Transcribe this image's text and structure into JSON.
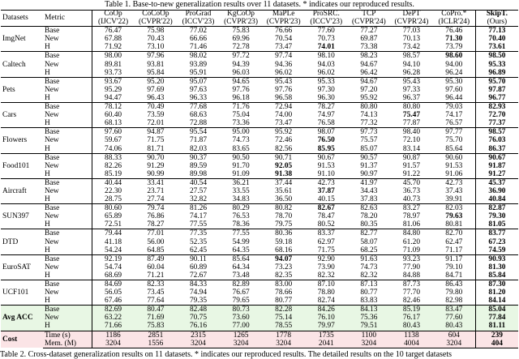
{
  "table": {
    "caption": "Table 1. Base-to-new generalization results over 11 datasets. * indicates our reproduced results.",
    "header": {
      "datasets": "Datasets",
      "metric": "Metric",
      "methods": [
        {
          "name": "CoOp",
          "venue": "(IJCV'22)"
        },
        {
          "name": "CoCoOp",
          "venue": "(CVPR'22)"
        },
        {
          "name": "ProGrad",
          "venue": "(ICCV'23)"
        },
        {
          "name": "KgCoOp",
          "venue": "(CVPR'23)"
        },
        {
          "name": "MaPLe",
          "venue": "(CVPR'23)"
        },
        {
          "name": "ProSRC.",
          "venue": "(ICCV'23)"
        },
        {
          "name": "TCP",
          "venue": "(CVPR'24)"
        },
        {
          "name": "DePT",
          "venue": "(CVPR'24)"
        },
        {
          "name": "CoPro.*",
          "venue": "(ICLR'24)"
        },
        {
          "name": "SkipT.",
          "venue": "(Ours)"
        }
      ]
    },
    "groups": [
      {
        "dataset": "ImgNet",
        "rows": [
          {
            "metric": "Base",
            "values": [
              "76.47",
              "75.98",
              "77.02",
              "75.83",
              "76.66",
              "77.60",
              "77.27",
              "77.03",
              "76.46",
              "77.13"
            ]
          },
          {
            "metric": "New",
            "values": [
              "67.88",
              "70.43",
              "66.66",
              "69.96",
              "70.54",
              "70.73",
              "69.87",
              "70.13",
              "71.30",
              "70.40"
            ]
          },
          {
            "metric": "H",
            "values": [
              "71.92",
              "73.10",
              "71.46",
              "72.78",
              "73.47",
              "74.01",
              "73.38",
              "73.42",
              "73.79",
              "73.61"
            ]
          }
        ]
      },
      {
        "dataset": "Caltech",
        "rows": [
          {
            "metric": "Base",
            "values": [
              "98.00",
              "97.96",
              "98.02",
              "97.72",
              "97.74",
              "98.10",
              "98.23",
              "98.57",
              "98.60",
              "98.50"
            ]
          },
          {
            "metric": "New",
            "values": [
              "89.81",
              "93.81",
              "93.89",
              "94.39",
              "94.36",
              "94.03",
              "94.67",
              "94.10",
              "94.00",
              "95.33"
            ]
          },
          {
            "metric": "H",
            "values": [
              "93.73",
              "95.84",
              "95.91",
              "96.03",
              "96.02",
              "96.02",
              "96.42",
              "96.28",
              "96.24",
              "96.89"
            ]
          }
        ]
      },
      {
        "dataset": "Pets",
        "rows": [
          {
            "metric": "Base",
            "values": [
              "93.67",
              "95.20",
              "95.07",
              "94.65",
              "95.43",
              "95.33",
              "94.67",
              "95.43",
              "95.30",
              "95.70"
            ]
          },
          {
            "metric": "New",
            "values": [
              "95.29",
              "97.69",
              "97.63",
              "97.76",
              "97.76",
              "97.30",
              "97.20",
              "97.33",
              "97.60",
              "97.87"
            ]
          },
          {
            "metric": "H",
            "values": [
              "94.47",
              "96.43",
              "96.33",
              "96.18",
              "96.58",
              "96.30",
              "95.92",
              "96.37",
              "96.44",
              "96.77"
            ]
          }
        ]
      },
      {
        "dataset": "Cars",
        "rows": [
          {
            "metric": "Base",
            "values": [
              "78.12",
              "70.49",
              "77.68",
              "71.76",
              "72.94",
              "78.27",
              "80.80",
              "80.80",
              "79.03",
              "82.93"
            ]
          },
          {
            "metric": "New",
            "values": [
              "60.40",
              "73.59",
              "68.63",
              "75.04",
              "74.00",
              "74.97",
              "74.13",
              "75.47",
              "74.17",
              "72.70"
            ]
          },
          {
            "metric": "H",
            "values": [
              "68.13",
              "72.01",
              "72.88",
              "73.36",
              "73.47",
              "76.58",
              "77.32",
              "77.87",
              "76.57",
              "77.37"
            ]
          }
        ]
      },
      {
        "dataset": "Flowers",
        "rows": [
          {
            "metric": "Base",
            "values": [
              "97.60",
              "94.87",
              "95.54",
              "95.00",
              "95.92",
              "98.07",
              "97.73",
              "98.40",
              "97.77",
              "98.57"
            ]
          },
          {
            "metric": "New",
            "values": [
              "59.67",
              "71.75",
              "71.87",
              "74.73",
              "72.46",
              "76.50",
              "75.57",
              "72.10",
              "75.70",
              "76.03"
            ]
          },
          {
            "metric": "H",
            "values": [
              "74.06",
              "81.71",
              "82.03",
              "83.65",
              "82.56",
              "85.95",
              "85.07",
              "83.14",
              "85.64",
              "86.37"
            ]
          }
        ]
      },
      {
        "dataset": "Food101",
        "rows": [
          {
            "metric": "Base",
            "values": [
              "88.33",
              "90.70",
              "90.37",
              "90.50",
              "90.71",
              "90.67",
              "90.57",
              "90.87",
              "90.60",
              "90.67"
            ]
          },
          {
            "metric": "New",
            "values": [
              "82.26",
              "91.29",
              "89.59",
              "91.70",
              "92.05",
              "91.53",
              "91.37",
              "91.57",
              "91.53",
              "91.87"
            ]
          },
          {
            "metric": "H",
            "values": [
              "85.19",
              "90.99",
              "89.98",
              "91.09",
              "91.38",
              "91.10",
              "90.97",
              "91.22",
              "91.06",
              "91.27"
            ]
          }
        ]
      },
      {
        "dataset": "Aircraft",
        "rows": [
          {
            "metric": "Base",
            "values": [
              "40.44",
              "33.41",
              "40.54",
              "36.21",
              "37.44",
              "42.73",
              "41.97",
              "45.70",
              "42.73",
              "45.37"
            ]
          },
          {
            "metric": "New",
            "values": [
              "22.30",
              "23.71",
              "27.57",
              "33.55",
              "35.61",
              "37.87",
              "34.43",
              "36.73",
              "37.43",
              "36.90"
            ]
          },
          {
            "metric": "H",
            "values": [
              "28.75",
              "27.74",
              "32.82",
              "34.83",
              "36.50",
              "40.15",
              "37.83",
              "40.73",
              "39.91",
              "40.84"
            ]
          }
        ]
      },
      {
        "dataset": "SUN397",
        "rows": [
          {
            "metric": "Base",
            "values": [
              "80.60",
              "79.74",
              "81.26",
              "80.29",
              "80.82",
              "82.67",
              "82.63",
              "83.27",
              "82.03",
              "82.87"
            ]
          },
          {
            "metric": "New",
            "values": [
              "65.89",
              "76.86",
              "74.17",
              "76.53",
              "78.70",
              "78.47",
              "78.20",
              "78.97",
              "79.63",
              "79.30"
            ]
          },
          {
            "metric": "H",
            "values": [
              "72.51",
              "78.27",
              "77.55",
              "78.36",
              "79.75",
              "80.52",
              "80.35",
              "81.06",
              "80.81",
              "81.05"
            ]
          }
        ]
      },
      {
        "dataset": "DTD",
        "rows": [
          {
            "metric": "Base",
            "values": [
              "79.44",
              "77.01",
              "77.35",
              "77.55",
              "80.36",
              "83.37",
              "82.77",
              "84.80",
              "82.70",
              "83.77"
            ]
          },
          {
            "metric": "New",
            "values": [
              "41.18",
              "56.00",
              "52.35",
              "54.99",
              "59.18",
              "62.97",
              "58.07",
              "61.20",
              "62.47",
              "67.23"
            ]
          },
          {
            "metric": "H",
            "values": [
              "54.24",
              "64.85",
              "62.45",
              "64.35",
              "68.16",
              "71.75",
              "68.25",
              "71.09",
              "71.17",
              "74.59"
            ]
          }
        ]
      },
      {
        "dataset": "EuroSAT",
        "rows": [
          {
            "metric": "Base",
            "values": [
              "92.19",
              "87.49",
              "90.11",
              "85.64",
              "94.07",
              "92.90",
              "91.63",
              "93.23",
              "91.17",
              "90.93"
            ]
          },
          {
            "metric": "New",
            "values": [
              "54.74",
              "60.04",
              "60.89",
              "64.34",
              "73.23",
              "73.90",
              "74.73",
              "77.90",
              "79.10",
              "81.30"
            ]
          },
          {
            "metric": "H",
            "values": [
              "68.69",
              "71.21",
              "72.67",
              "73.48",
              "82.35",
              "82.32",
              "82.32",
              "84.88",
              "84.71",
              "85.84"
            ]
          }
        ]
      },
      {
        "dataset": "UCF101",
        "rows": [
          {
            "metric": "Base",
            "values": [
              "84.69",
              "82.33",
              "84.33",
              "82.89",
              "83.00",
              "87.10",
              "87.13",
              "87.73",
              "86.43",
              "87.30"
            ]
          },
          {
            "metric": "New",
            "values": [
              "56.05",
              "73.45",
              "74.94",
              "76.67",
              "78.66",
              "78.80",
              "80.77",
              "77.70",
              "79.80",
              "81.20"
            ]
          },
          {
            "metric": "H",
            "values": [
              "67.46",
              "77.64",
              "79.35",
              "79.65",
              "80.77",
              "82.74",
              "83.83",
              "82.46",
              "82.98",
              "84.14"
            ]
          }
        ]
      },
      {
        "dataset": "Avg ACC",
        "rows": [
          {
            "metric": "Base",
            "values": [
              "82.69",
              "80.47",
              "82.48",
              "80.73",
              "82.28",
              "84.26",
              "84.13",
              "85.19",
              "83.47",
              "85.04"
            ]
          },
          {
            "metric": "New",
            "values": [
              "63.22",
              "71.69",
              "70.75",
              "73.60",
              "75.14",
              "76.10",
              "75.36",
              "76.17",
              "77.60",
              "77.84"
            ]
          },
          {
            "metric": "H",
            "values": [
              "71.66",
              "75.83",
              "76.16",
              "77.00",
              "78.55",
              "79.97",
              "79.51",
              "80.43",
              "80.43",
              "81.11"
            ]
          }
        ]
      },
      {
        "dataset": "Cost",
        "rows": [
          {
            "metric": "Time (s)",
            "values": [
              "1186",
              "2851",
              "2315",
              "1265",
              "1778",
              "1735",
              "1100",
              "1138",
              "604",
              "239"
            ]
          },
          {
            "metric": "Mem. (M)",
            "values": [
              "3204",
              "1556",
              "3204",
              "3204",
              "3204",
              "2041",
              "3204",
              "4004",
              "3204",
              "404"
            ]
          }
        ]
      }
    ]
  },
  "next_caption": "Table 2. Cross-dataset generalization results on 11 datasets. * indicates our reproduced results. The detailed results on the 10 target datasets"
}
